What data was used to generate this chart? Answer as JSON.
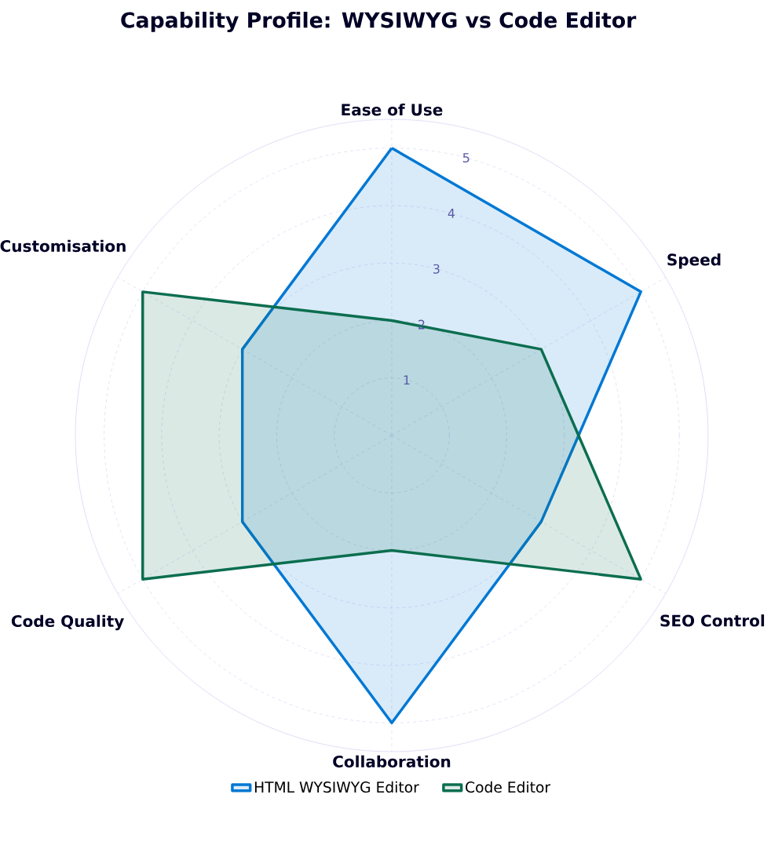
{
  "chart_data": {
    "type": "radar",
    "title": "Capability Profile: WYSIWYG vs Code Editor",
    "categories": [
      "Ease of Use",
      "Speed",
      "SEO Control",
      "Collaboration",
      "Code Quality",
      "Customisation"
    ],
    "series": [
      {
        "name": "HTML WYSIWYG Editor",
        "color": "#0078d4",
        "values": [
          5,
          5,
          3,
          5,
          3,
          3
        ]
      },
      {
        "name": "Code Editor",
        "color": "#0b6e4f",
        "values": [
          2,
          3,
          5,
          2,
          5,
          5
        ]
      }
    ],
    "ylim": [
      0,
      5.5
    ],
    "yticks": [
      1,
      2,
      3,
      4,
      5
    ],
    "grid": true,
    "legend": "bottom"
  }
}
